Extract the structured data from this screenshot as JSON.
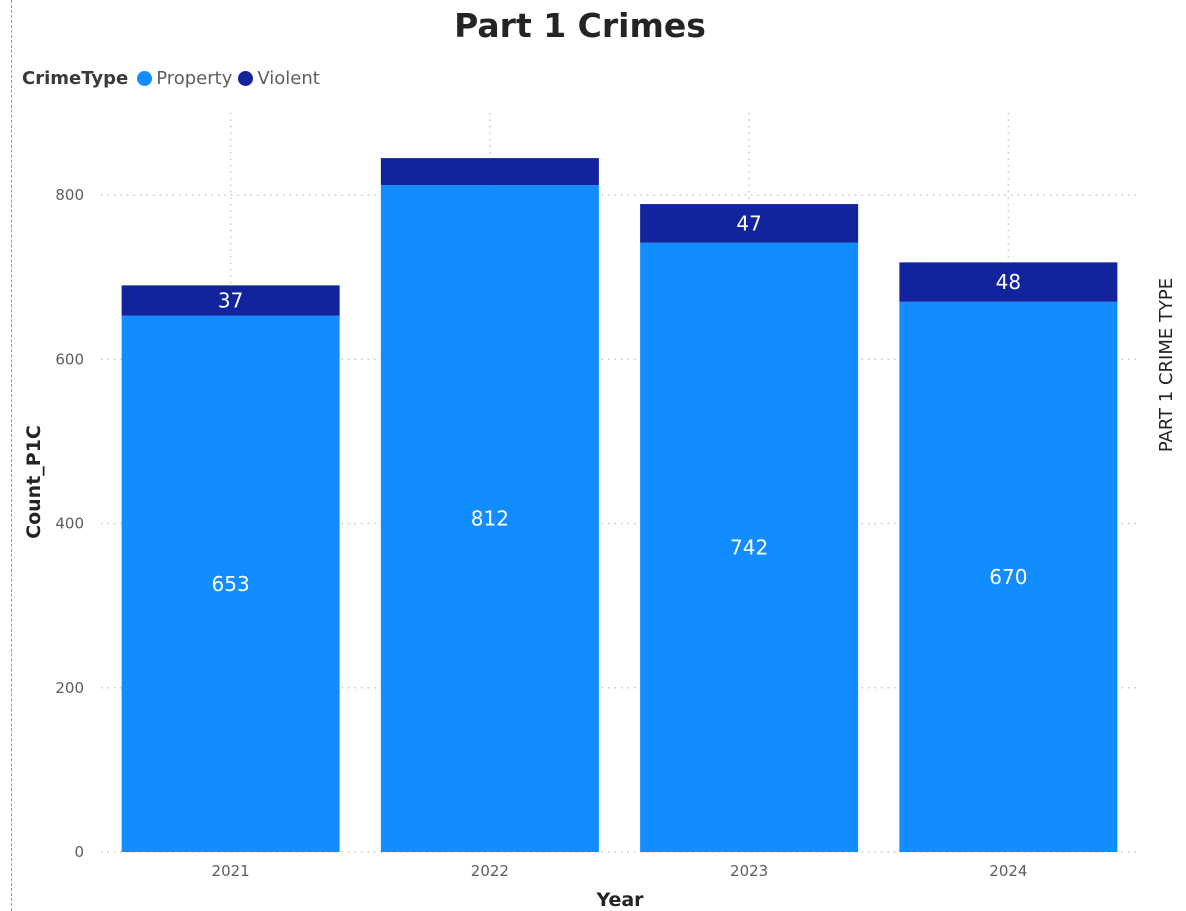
{
  "chart_data": {
    "type": "bar",
    "stacked": true,
    "title": "Part 1 Crimes",
    "legend_title": "CrimeType",
    "legend_position": "top-left",
    "categories": [
      "2021",
      "2022",
      "2023",
      "2024"
    ],
    "series": [
      {
        "name": "Property",
        "color": "#118DFF",
        "values": [
          653,
          812,
          742,
          670
        ],
        "labels": [
          "653",
          "812",
          "742",
          "670"
        ]
      },
      {
        "name": "Violent",
        "color": "#12239E",
        "values": [
          37,
          33,
          47,
          48
        ],
        "labels": [
          "37",
          "",
          "47",
          "48"
        ]
      }
    ],
    "xlabel": "Year",
    "ylabel": "Count_P1C",
    "secondary_label": "PART 1 CRIME TYPE",
    "ylim": [
      0,
      900
    ],
    "yticks": [
      "0",
      "200",
      "400",
      "600",
      "800"
    ],
    "grid": true
  }
}
